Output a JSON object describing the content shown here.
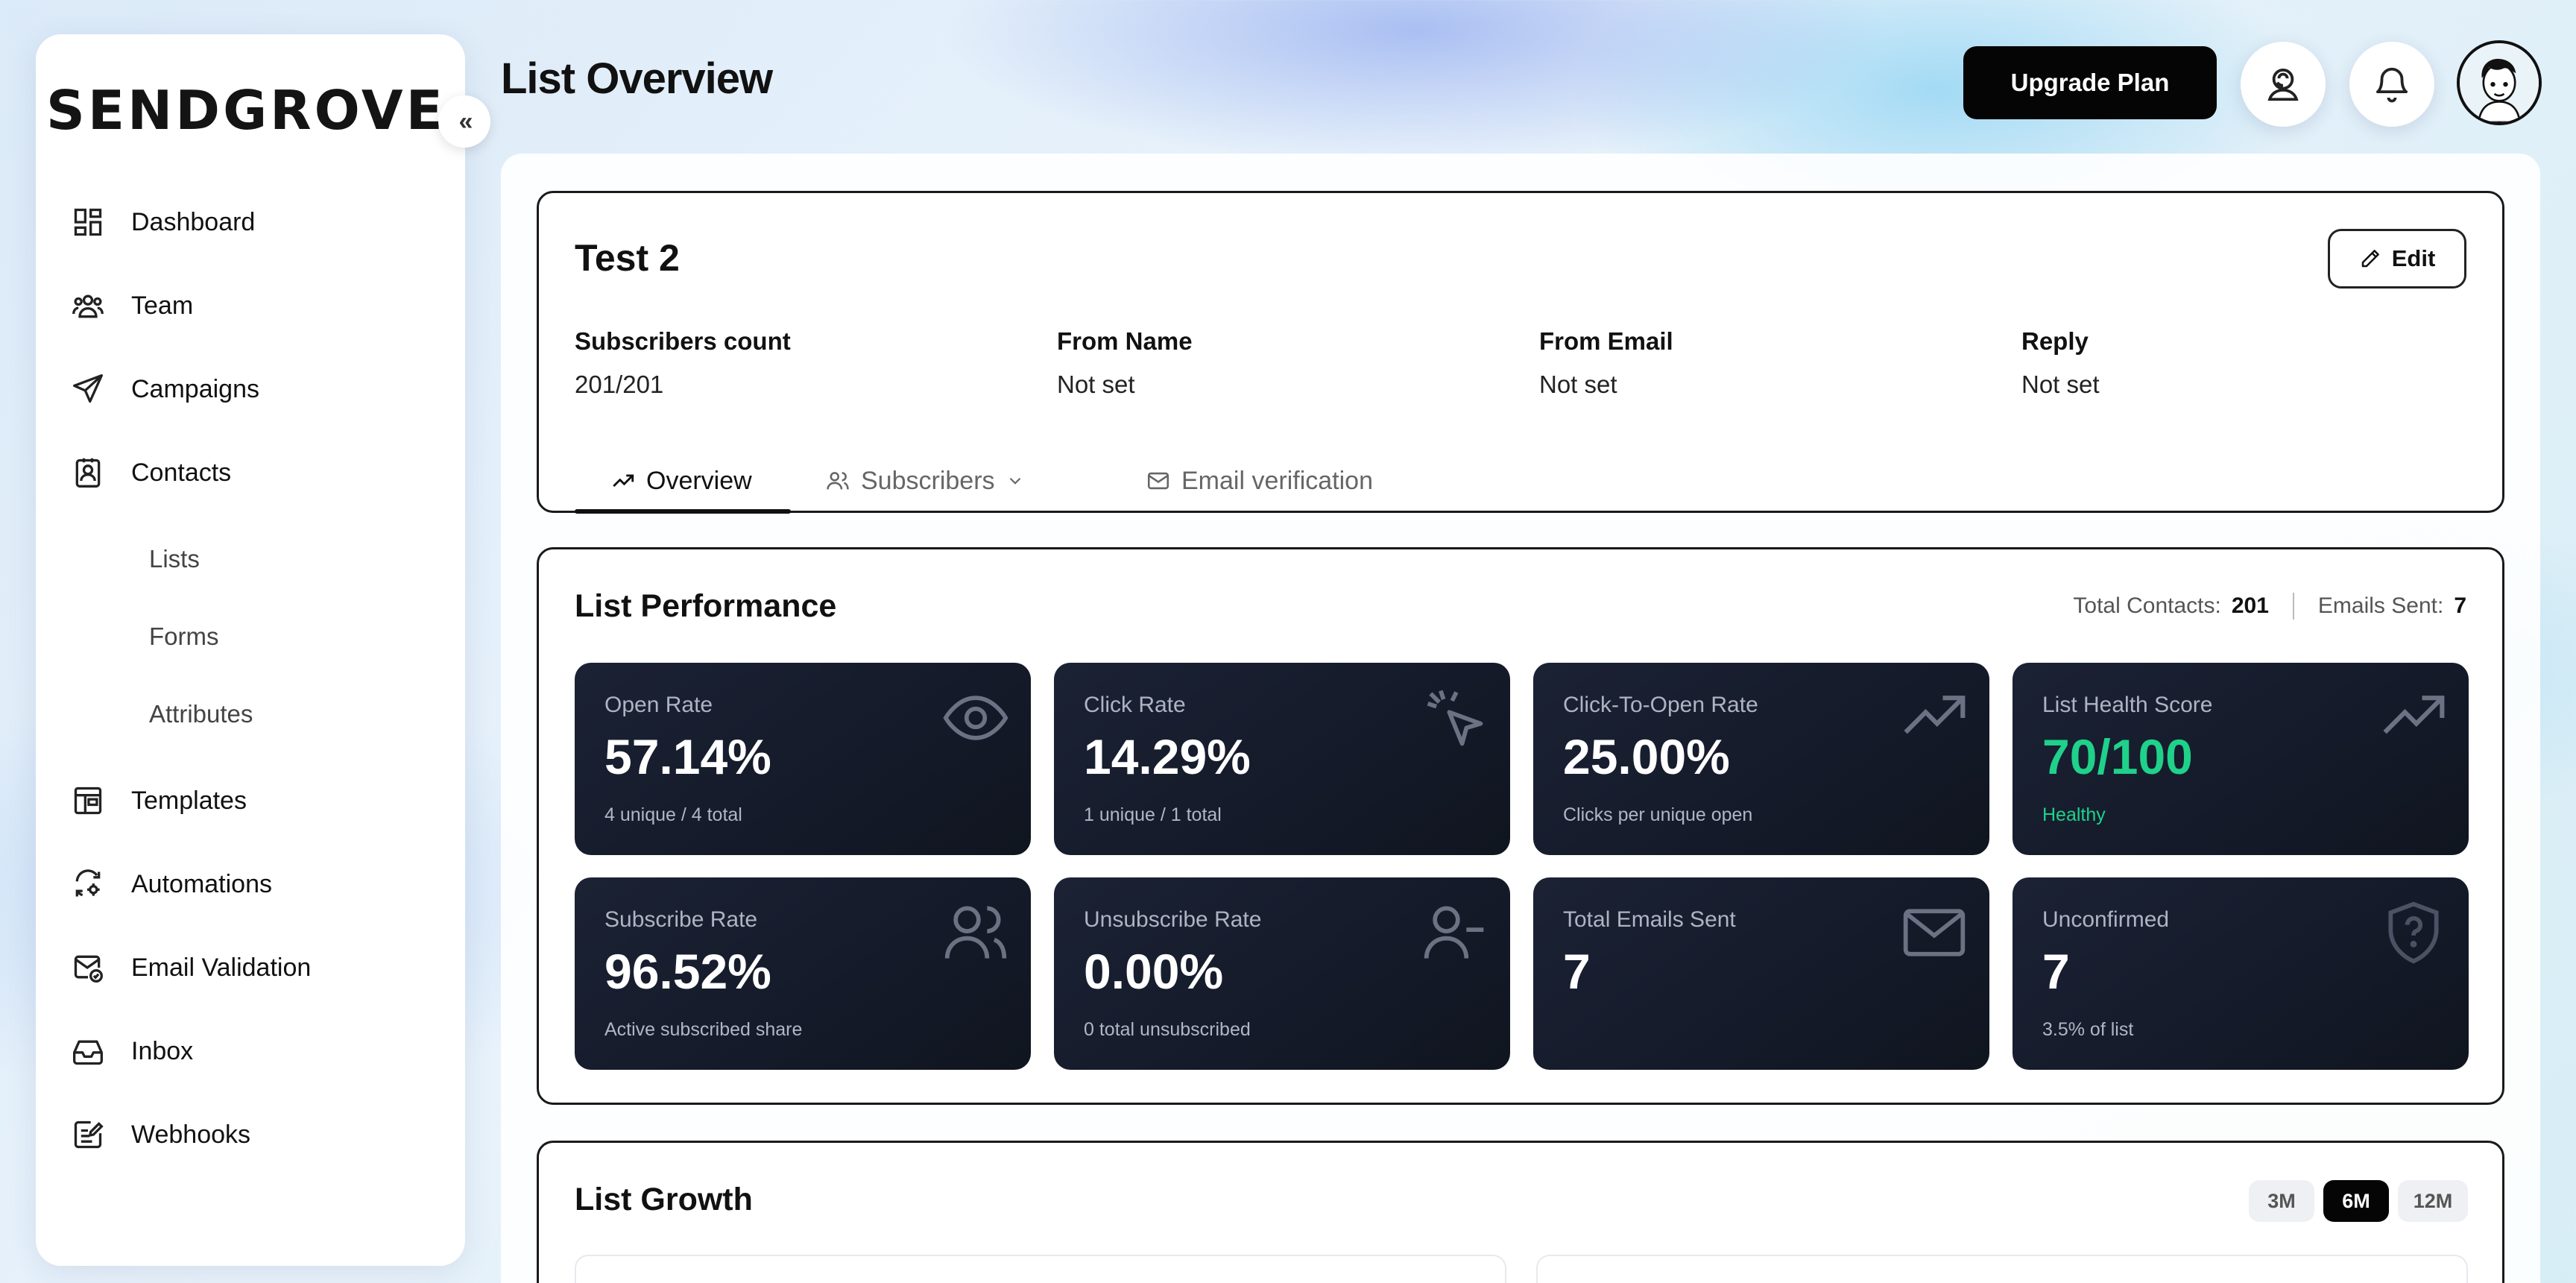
{
  "brand": {
    "logo": "SENDGROVE"
  },
  "sidebar": {
    "collapse": "«",
    "items": [
      {
        "label": "Dashboard",
        "icon": "dashboard-icon"
      },
      {
        "label": "Team",
        "icon": "team-icon"
      },
      {
        "label": "Campaigns",
        "icon": "send-icon"
      },
      {
        "label": "Contacts",
        "icon": "contacts-icon"
      },
      {
        "label": "Templates",
        "icon": "template-icon"
      },
      {
        "label": "Automations",
        "icon": "automation-icon"
      },
      {
        "label": "Email Validation",
        "icon": "email-validation-icon"
      },
      {
        "label": "Inbox",
        "icon": "inbox-icon"
      },
      {
        "label": "Webhooks",
        "icon": "webhook-icon"
      }
    ],
    "contacts_sub": [
      "Lists",
      "Forms",
      "Attributes"
    ]
  },
  "header": {
    "title": "List Overview",
    "upgrade_label": "Upgrade Plan"
  },
  "list": {
    "name": "Test 2",
    "edit_label": "Edit",
    "meta": [
      {
        "key": "Subscribers count",
        "value": "201/201"
      },
      {
        "key": "From Name",
        "value": "Not set"
      },
      {
        "key": "From Email",
        "value": "Not set"
      },
      {
        "key": "Reply",
        "value": "Not set"
      }
    ],
    "tabs": [
      {
        "label": "Overview",
        "active": true
      },
      {
        "label": "Subscribers",
        "active": false
      },
      {
        "label": "Email verification",
        "active": false
      }
    ]
  },
  "performance": {
    "title": "List Performance",
    "total_contacts_label": "Total Contacts:",
    "total_contacts": "201",
    "emails_sent_label": "Emails Sent:",
    "emails_sent": "7",
    "metrics": [
      {
        "label": "Open Rate",
        "value": "57.14%",
        "sub": "4 unique / 4 total",
        "icon": "eye-icon"
      },
      {
        "label": "Click Rate",
        "value": "14.29%",
        "sub": "1 unique / 1 total",
        "icon": "cursor-click-icon"
      },
      {
        "label": "Click-To-Open Rate",
        "value": "25.00%",
        "sub": "Clicks per unique open",
        "icon": "trend-up-icon"
      },
      {
        "label": "List Health Score",
        "value": "70/100",
        "sub": "Healthy",
        "icon": "trend-up-icon",
        "accent": "#1fd18a"
      },
      {
        "label": "Subscribe Rate",
        "value": "96.52%",
        "sub": "Active subscribed share",
        "icon": "users-icon"
      },
      {
        "label": "Unsubscribe Rate",
        "value": "0.00%",
        "sub": "0 total unsubscribed",
        "icon": "user-minus-icon"
      },
      {
        "label": "Total Emails Sent",
        "value": "7",
        "sub": "",
        "icon": "mail-icon"
      },
      {
        "label": "Unconfirmed",
        "value": "7",
        "sub": "3.5% of list",
        "icon": "shield-question-icon"
      }
    ]
  },
  "growth": {
    "title": "List Growth",
    "ranges": [
      {
        "label": "3M",
        "active": false
      },
      {
        "label": "6M",
        "active": true
      },
      {
        "label": "12M",
        "active": false
      }
    ]
  },
  "colors": {
    "card_dark": "#141a29",
    "healthy": "#1fd18a",
    "primary_button": "#050505"
  }
}
